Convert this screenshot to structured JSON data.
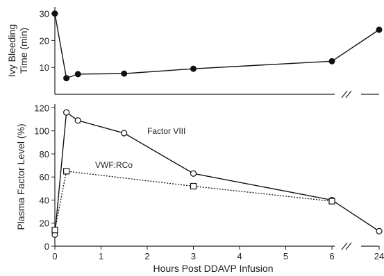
{
  "chart_data": [
    {
      "type": "line",
      "ylabel": "Ivy Bleeding Time (min)",
      "yticks": [
        "10",
        "20",
        "30"
      ],
      "ylim": [
        0,
        30
      ],
      "x_break": true,
      "series": [
        {
          "marker": "filled-circle",
          "line_style": "solid",
          "color": "#111111",
          "points": [
            {
              "x": 0,
              "y": 30
            },
            {
              "x": 0.25,
              "y": 6
            },
            {
              "x": 0.5,
              "y": 7.5
            },
            {
              "x": 1.5,
              "y": 7.7
            },
            {
              "x": 3,
              "y": 9.5
            },
            {
              "x": 6,
              "y": 12.3
            },
            {
              "x": 24,
              "y": 24
            }
          ]
        }
      ]
    },
    {
      "type": "line",
      "xlabel": "Hours Post DDAVP Infusion",
      "ylabel": "Plasma Factor Level (%)",
      "xticks": [
        "0",
        "1",
        "2",
        "3",
        "4",
        "5",
        "6",
        "24"
      ],
      "yticks": [
        "0",
        "20",
        "40",
        "60",
        "80",
        "100",
        "120"
      ],
      "ylim": [
        0,
        120
      ],
      "x_break": true,
      "grid": false,
      "series": [
        {
          "name": "Factor VIII",
          "marker": "open-circle",
          "line_style": "solid",
          "color": "#111111",
          "points": [
            {
              "x": 0,
              "y": 10
            },
            {
              "x": 0.25,
              "y": 116
            },
            {
              "x": 0.5,
              "y": 109
            },
            {
              "x": 1.5,
              "y": 98
            },
            {
              "x": 3,
              "y": 63
            },
            {
              "x": 6,
              "y": 40
            },
            {
              "x": 24,
              "y": 13
            }
          ]
        },
        {
          "name": "VWF:RCo",
          "marker": "open-square",
          "line_style": "dotted",
          "color": "#111111",
          "points": [
            {
              "x": 0,
              "y": 14
            },
            {
              "x": 0.25,
              "y": 65
            },
            {
              "x": 3,
              "y": 52
            },
            {
              "x": 6,
              "y": 39
            }
          ]
        }
      ]
    }
  ]
}
